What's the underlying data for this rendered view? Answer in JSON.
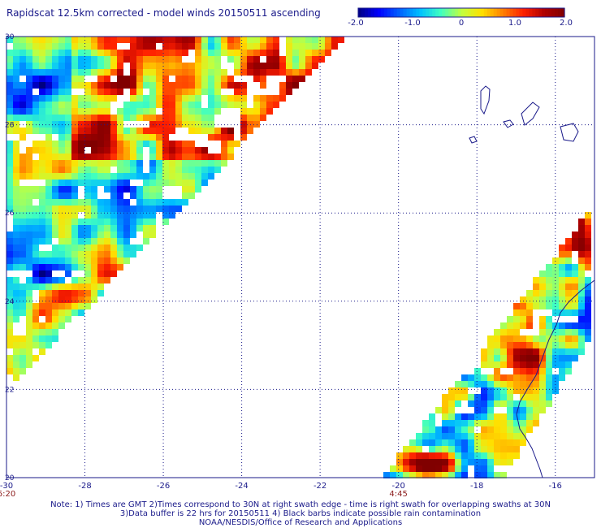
{
  "title": "Rapidscat 12.5km corrected - model winds 20150511 ascending",
  "colorbar": {
    "min": -2.0,
    "max": 2.0,
    "tick_labels": [
      "-2.0",
      "-1.0",
      "0",
      "1.0",
      "2.0"
    ],
    "tick_values": [
      -2.0,
      -1.0,
      0,
      1.0,
      2.0
    ],
    "colors": [
      "#000080",
      "#0000ff",
      "#0060ff",
      "#00c0ff",
      "#40ffc0",
      "#c0ff40",
      "#ffe000",
      "#ff8000",
      "#ff2000",
      "#b00000",
      "#800000"
    ]
  },
  "map": {
    "lon_range": [
      -30,
      -15
    ],
    "lat_range": [
      20,
      30
    ],
    "lon_tick_values": [
      -30,
      -28,
      -26,
      -24,
      -22,
      -20,
      -18,
      -16
    ],
    "lon_tick_labels": [
      "-30",
      "-28",
      "-26",
      "-24",
      "-22",
      "-20",
      "-18",
      "-16"
    ],
    "lat_tick_values": [
      20,
      22,
      24,
      26,
      28,
      30
    ],
    "lat_tick_labels": [
      "20",
      "22",
      "24",
      "26",
      "28",
      "30"
    ],
    "time_labels": [
      {
        "lon": -30,
        "text": "6:20"
      },
      {
        "lon": -20,
        "text": "4:45"
      }
    ],
    "grid_color": "#1a1a8a",
    "time_label_color": "#8b1a1a",
    "coast_color": "#1a1a8a"
  },
  "notes": [
    "Note: 1) Times are GMT 2)Times correspond to 30N at right swath edge - time is right swath for overlapping swaths at 30N",
    "3)Data buffer is 22 hrs for 20150511 4) Black barbs indicate possible rain contamination",
    "NOAA/NESDIS/Office of Research and Applications"
  ]
}
